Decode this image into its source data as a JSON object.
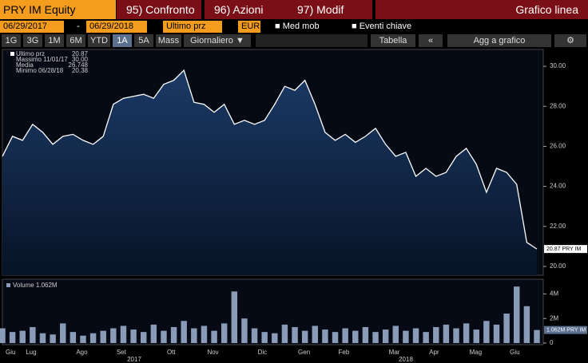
{
  "toolbar": {
    "ticker": "PRY IM Equity",
    "menus": [
      "95) Confronto",
      "96) Azioni",
      "97) Modif"
    ],
    "title": "Grafico linea",
    "start_date": "06/29/2017",
    "dash": "-",
    "end_date": "06/29/2018",
    "field": "Ultimo prz",
    "currency": "EUR",
    "options": [
      "Med mob",
      "Eventi chiave"
    ],
    "periods": [
      "1G",
      "3G",
      "1M",
      "6M",
      "YTD",
      "1A",
      "5A",
      "Mass"
    ],
    "frequency": "Giornaliero ▼",
    "table": "Tabella",
    "add": "Agg a grafico"
  },
  "chart_data": [
    {
      "type": "area",
      "color": "#ffffff",
      "legend": [
        {
          "label": "Ultimo prz",
          "value": "20.87"
        },
        {
          "label": "Massimo 11/01/17",
          "value": "30.00"
        },
        {
          "label": "Media",
          "value": "26.748"
        },
        {
          "label": "Minimo 06/28/18",
          "value": "20.38"
        }
      ],
      "series": [
        {
          "name": "Ultimo prz",
          "values": [
            25.5,
            26.5,
            26.3,
            27.1,
            26.7,
            26.1,
            26.5,
            26.6,
            26.3,
            26.1,
            26.5,
            28.1,
            28.4,
            28.5,
            28.6,
            28.4,
            29.1,
            29.3,
            29.8,
            28.2,
            28.1,
            27.7,
            28.1,
            27.1,
            27.3,
            27.1,
            27.3,
            28.1,
            29.0,
            28.8,
            29.3,
            28.1,
            26.7,
            26.3,
            26.6,
            26.2,
            26.5,
            26.9,
            26.1,
            25.5,
            25.7,
            24.5,
            24.9,
            24.5,
            24.7,
            25.5,
            25.9,
            25.1,
            23.7,
            24.9,
            24.7,
            24.1,
            21.2,
            20.87
          ]
        }
      ],
      "annotation": "20.87 PRY IM",
      "ylim": [
        19.56,
        30.84
      ],
      "yticks": [
        {
          "value": 20,
          "label": "20.00"
        },
        {
          "value": 22,
          "label": "22.00"
        },
        {
          "value": 24,
          "label": "24.00"
        },
        {
          "value": 26,
          "label": "26.00"
        },
        {
          "value": 28,
          "label": "28.00"
        },
        {
          "value": 30,
          "label": "30.00"
        }
      ]
    },
    {
      "type": "bar",
      "color": "#8a9bb8",
      "legend_label": "Volume 1.062M",
      "categories": [
        "Giu",
        null,
        "Lug",
        null,
        null,
        null,
        null,
        "Ago",
        null,
        null,
        null,
        "Set",
        null,
        null,
        null,
        null,
        "Ott",
        null,
        null,
        null,
        "Nov",
        null,
        null,
        null,
        null,
        "Dic",
        null,
        null,
        null,
        "Gen",
        null,
        null,
        null,
        "Feb",
        null,
        null,
        null,
        null,
        "Mar",
        null,
        null,
        null,
        "Apr",
        null,
        null,
        null,
        "Mag",
        null,
        null,
        null,
        "Giu",
        null,
        null,
        null
      ],
      "years": [
        "2017",
        "2018"
      ],
      "series": [
        {
          "name": "Volume",
          "values": [
            1.2,
            0.9,
            1.0,
            1.3,
            0.8,
            0.7,
            1.6,
            0.9,
            0.6,
            0.8,
            1.0,
            1.2,
            1.4,
            1.1,
            0.9,
            1.5,
            1.0,
            1.3,
            1.8,
            1.2,
            1.4,
            1.0,
            1.6,
            4.2,
            2.0,
            1.2,
            0.9,
            0.8,
            1.5,
            1.3,
            1.0,
            1.4,
            1.1,
            0.9,
            1.2,
            1.0,
            1.3,
            0.9,
            1.1,
            1.4,
            1.0,
            1.2,
            0.9,
            1.3,
            1.5,
            1.2,
            1.6,
            1.1,
            1.8,
            1.5,
            2.4,
            4.6,
            3.0,
            1.062
          ]
        }
      ],
      "annotation": "1.062M PRY IM",
      "ylim": [
        0,
        5
      ],
      "yticks": [
        0,
        {
          "value": 2,
          "label": "2M"
        },
        {
          "value": 4,
          "label": "4M"
        }
      ]
    }
  ]
}
